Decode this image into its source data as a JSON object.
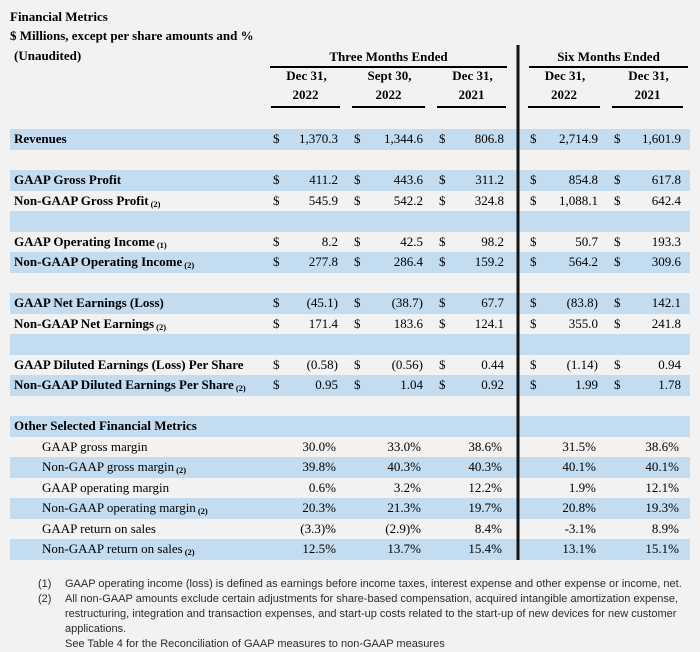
{
  "title": {
    "line1": "Financial Metrics",
    "line2": "$ Millions, except per share amounts and %",
    "line3": "(Unaudited)"
  },
  "colors": {
    "band_blue": "#c3dcf0",
    "divider_black": "#141414",
    "page_background": "#f2f2f2"
  },
  "table": {
    "groups": [
      {
        "label": "Three Months Ended",
        "cols": [
          {
            "l1": "Dec 31,",
            "l2": "2022"
          },
          {
            "l1": "Sept 30,",
            "l2": "2022"
          },
          {
            "l1": "Dec 31,",
            "l2": "2021"
          }
        ]
      },
      {
        "label": "Six Months Ended",
        "cols": [
          {
            "l1": "Dec 31,",
            "l2": "2022"
          },
          {
            "l1": "Dec 31,",
            "l2": "2021"
          }
        ]
      }
    ],
    "rows": [
      {
        "type": "money",
        "label": "Revenues",
        "sub": "",
        "bold": true,
        "indent": false,
        "shaded": true,
        "values": [
          "1,370.3",
          "1,344.6",
          "806.8",
          "2,714.9",
          "1,601.9"
        ]
      },
      {
        "type": "spacer",
        "shaded": false
      },
      {
        "type": "money",
        "label": "GAAP Gross Profit",
        "sub": "",
        "bold": true,
        "indent": false,
        "shaded": true,
        "values": [
          "411.2",
          "443.6",
          "311.2",
          "854.8",
          "617.8"
        ]
      },
      {
        "type": "money",
        "label": "Non-GAAP Gross Profit",
        "sub": "(2)",
        "bold": true,
        "indent": false,
        "shaded": false,
        "values": [
          "545.9",
          "542.2",
          "324.8",
          "1,088.1",
          "642.4"
        ]
      },
      {
        "type": "spacer",
        "shaded": true
      },
      {
        "type": "money",
        "label": "GAAP Operating Income",
        "sub": "(1)",
        "bold": true,
        "indent": false,
        "shaded": false,
        "values": [
          "8.2",
          "42.5",
          "98.2",
          "50.7",
          "193.3"
        ]
      },
      {
        "type": "money",
        "label": "Non-GAAP Operating Income",
        "sub": "(2)",
        "bold": true,
        "indent": false,
        "shaded": true,
        "values": [
          "277.8",
          "286.4",
          "159.2",
          "564.2",
          "309.6"
        ]
      },
      {
        "type": "spacer",
        "shaded": false
      },
      {
        "type": "money",
        "label": "GAAP Net Earnings (Loss)",
        "sub": "",
        "bold": true,
        "indent": false,
        "shaded": true,
        "values": [
          "(45.1)",
          "(38.7)",
          "67.7",
          "(83.8)",
          "142.1"
        ]
      },
      {
        "type": "money",
        "label": "Non-GAAP Net Earnings",
        "sub": "(2)",
        "bold": true,
        "indent": false,
        "shaded": false,
        "values": [
          "171.4",
          "183.6",
          "124.1",
          "355.0",
          "241.8"
        ]
      },
      {
        "type": "spacer",
        "shaded": true
      },
      {
        "type": "money",
        "label": "GAAP Diluted Earnings (Loss) Per Share",
        "sub": "",
        "bold": true,
        "indent": false,
        "shaded": false,
        "values": [
          "(0.58)",
          "(0.56)",
          "0.44",
          "(1.14)",
          "0.94"
        ]
      },
      {
        "type": "money",
        "label": "Non-GAAP Diluted Earnings Per Share",
        "sub": "(2)",
        "bold": true,
        "indent": false,
        "shaded": true,
        "values": [
          "0.95",
          "1.04",
          "0.92",
          "1.99",
          "1.78"
        ]
      },
      {
        "type": "spacer",
        "shaded": false
      },
      {
        "type": "section",
        "label": "Other Selected Financial Metrics",
        "sub": "",
        "bold": true,
        "indent": false,
        "shaded": true
      },
      {
        "type": "percent",
        "label": "GAAP gross margin",
        "sub": "",
        "bold": false,
        "indent": true,
        "shaded": false,
        "values": [
          "30.0%",
          "33.0%",
          "38.6%",
          "31.5%",
          "38.6%"
        ]
      },
      {
        "type": "percent",
        "label": "Non-GAAP gross margin",
        "sub": "(2)",
        "bold": false,
        "indent": true,
        "shaded": true,
        "values": [
          "39.8%",
          "40.3%",
          "40.3%",
          "40.1%",
          "40.1%"
        ]
      },
      {
        "type": "percent",
        "label": "GAAP operating margin",
        "sub": "",
        "bold": false,
        "indent": true,
        "shaded": false,
        "values": [
          "0.6%",
          "3.2%",
          "12.2%",
          "1.9%",
          "12.1%"
        ]
      },
      {
        "type": "percent",
        "label": "Non-GAAP operating margin",
        "sub": "(2)",
        "bold": false,
        "indent": true,
        "shaded": true,
        "values": [
          "20.3%",
          "21.3%",
          "19.7%",
          "20.8%",
          "19.3%"
        ]
      },
      {
        "type": "percent",
        "label": "GAAP return on sales",
        "sub": "",
        "bold": false,
        "indent": true,
        "shaded": false,
        "values": [
          "(3.3)%",
          "(2.9)%",
          "8.4%",
          "-3.1%",
          "8.9%"
        ]
      },
      {
        "type": "percent",
        "label": "Non-GAAP return on sales",
        "sub": "(2)",
        "bold": false,
        "indent": true,
        "shaded": true,
        "values": [
          "12.5%",
          "13.7%",
          "15.4%",
          "13.1%",
          "15.1%"
        ]
      }
    ],
    "dollar_sign": "$"
  },
  "footnotes": [
    {
      "marker": "(1)",
      "text": "GAAP operating income (loss) is defined as earnings before income taxes, interest expense and other expense or income, net."
    },
    {
      "marker": "(2)",
      "text": "All non-GAAP amounts exclude certain adjustments for share-based compensation, acquired intangible amortization expense, restructuring, integration and transaction expenses, and start-up costs related to the start-up of new devices for new customer applications.",
      "text2": "See Table 4 for the Reconciliation of GAAP measures to non-GAAP measures"
    }
  ]
}
